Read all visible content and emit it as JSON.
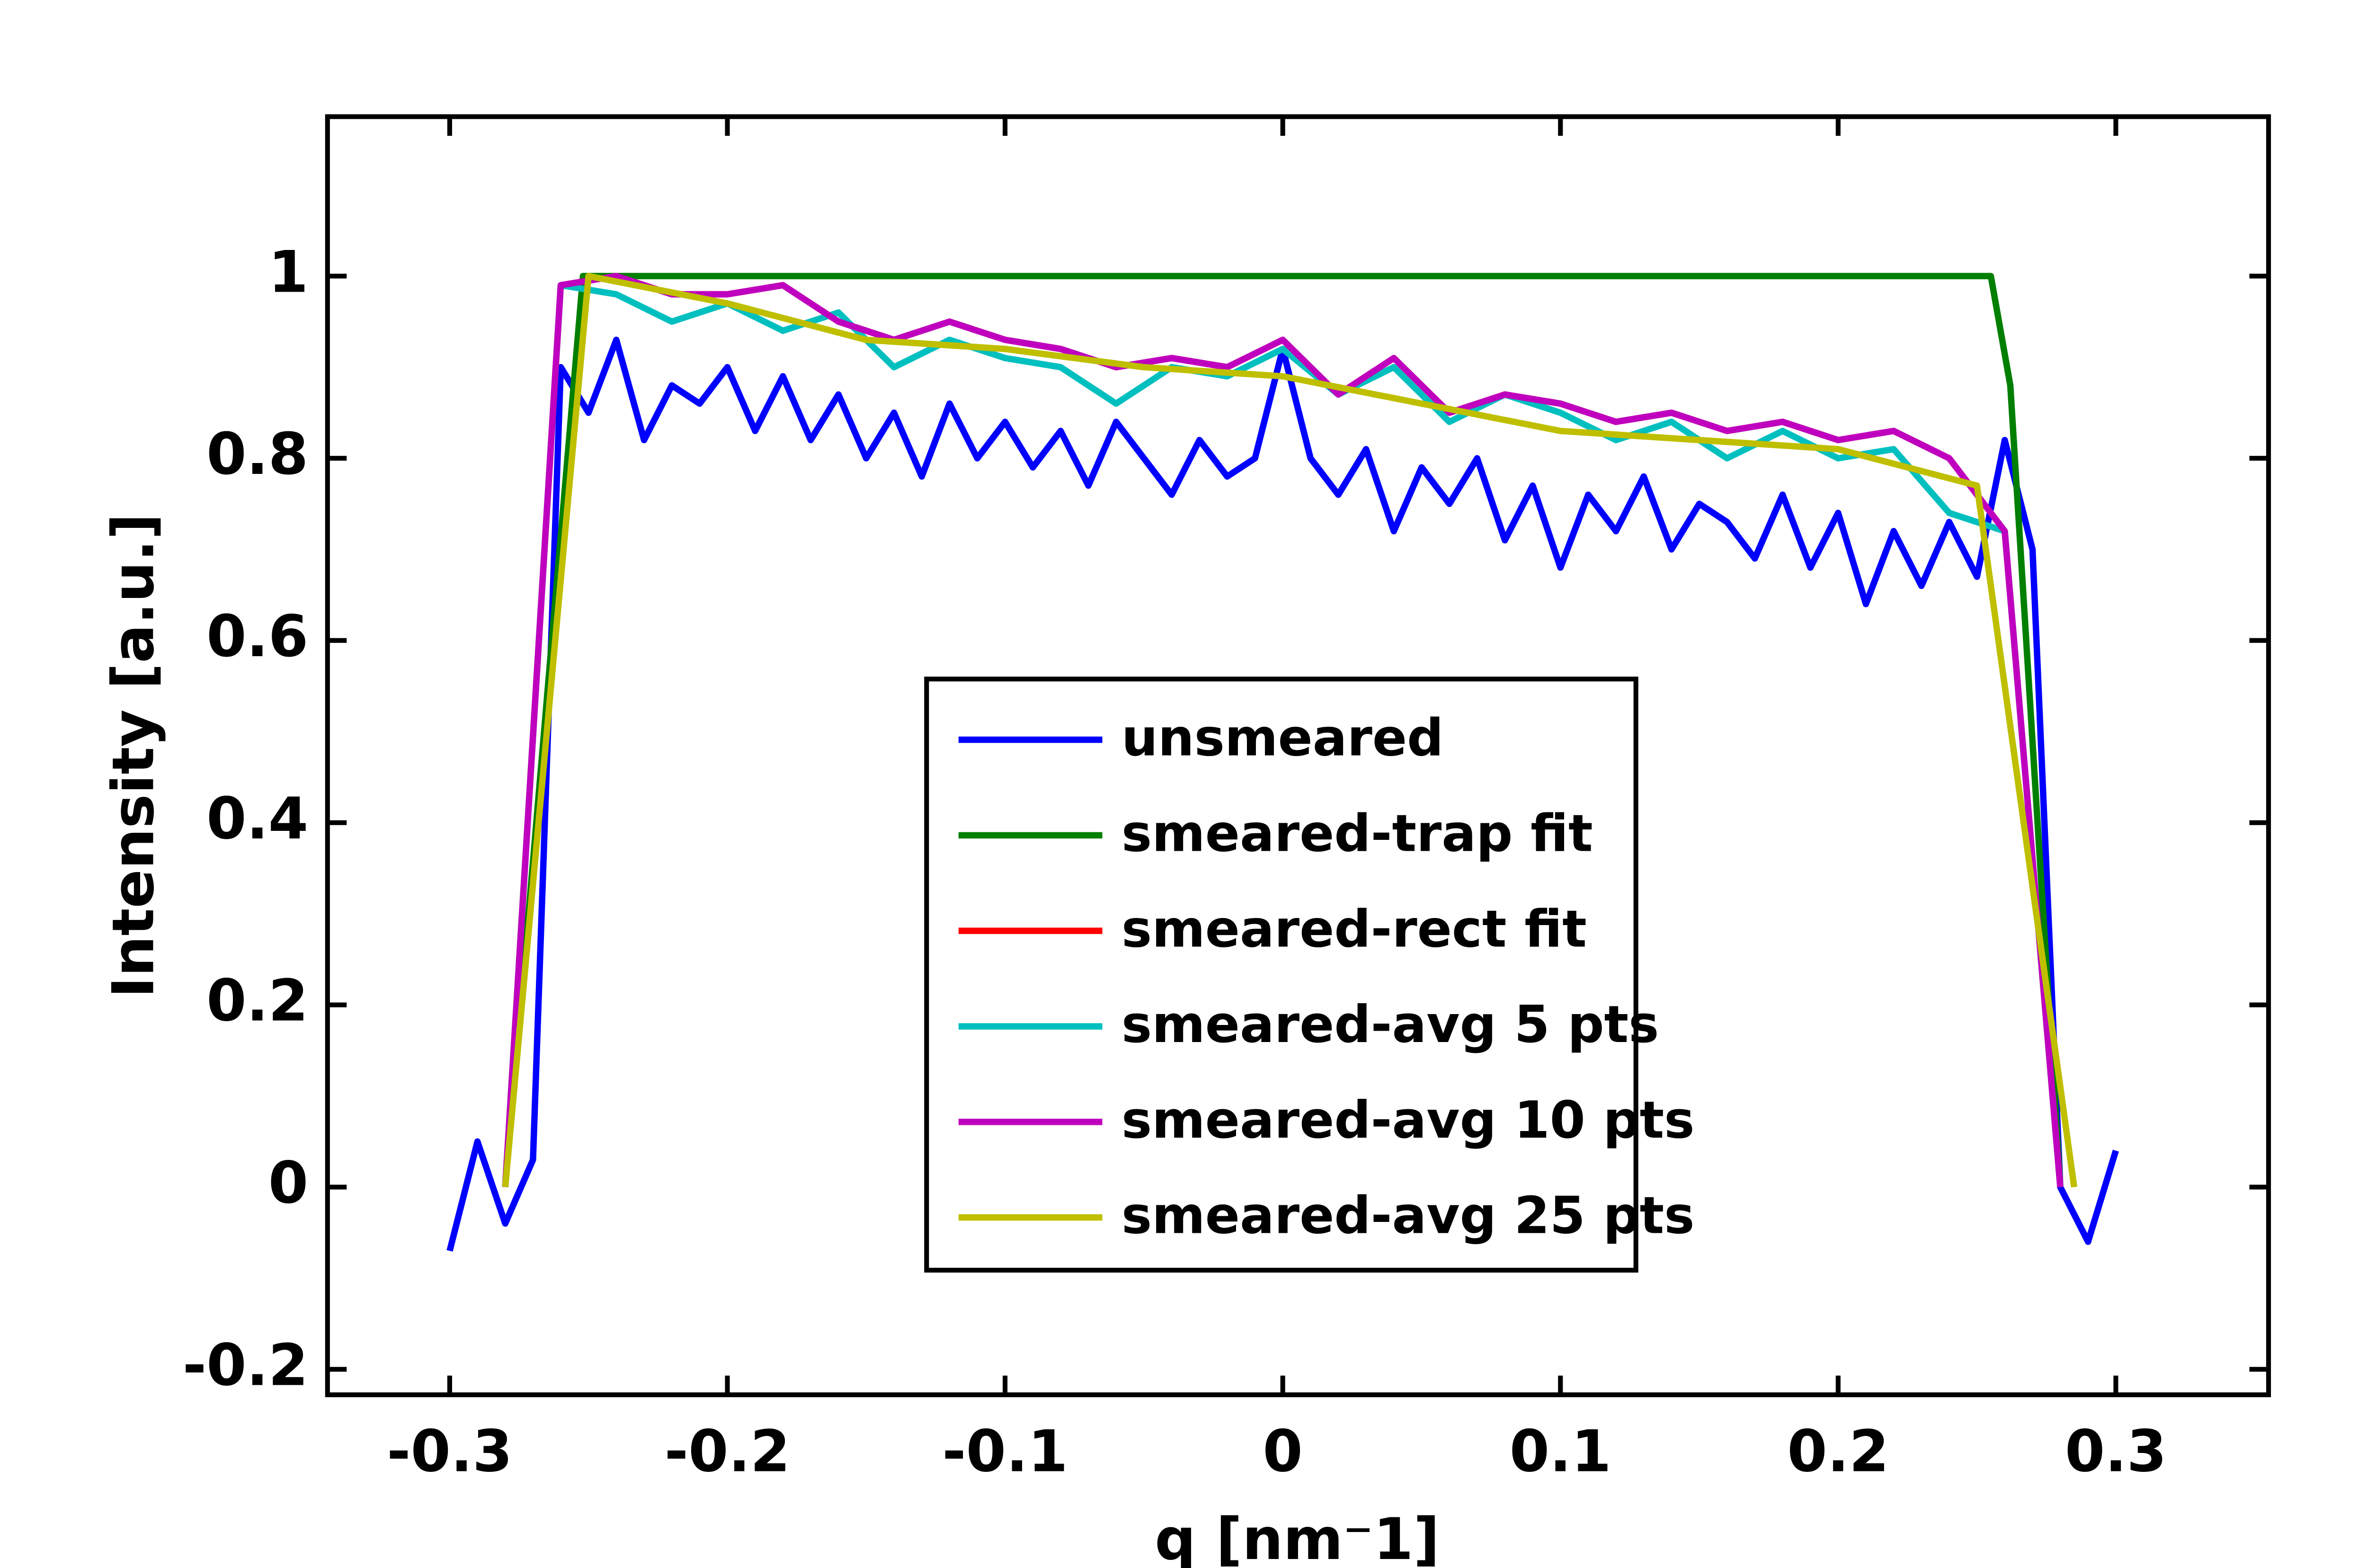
{
  "chart_data": {
    "type": "line",
    "xlabel": "q [nm⁻1]",
    "ylabel": "Intensity [a.u.]",
    "xlim": [
      -0.344,
      0.355
    ],
    "ylim": [
      -0.228,
      1.175
    ],
    "xticks": [
      -0.3,
      -0.2,
      -0.1,
      0,
      0.1,
      0.2,
      0.3
    ],
    "yticks": [
      -0.2,
      0,
      0.2,
      0.4,
      0.6,
      0.8,
      1
    ],
    "legend": "center",
    "series": [
      {
        "name": "unsmeared",
        "color": "#0000ff",
        "x": [
          -0.3,
          -0.29,
          -0.28,
          -0.27,
          -0.26,
          -0.25,
          -0.24,
          -0.23,
          -0.22,
          -0.21,
          -0.2,
          -0.19,
          -0.18,
          -0.17,
          -0.16,
          -0.15,
          -0.14,
          -0.13,
          -0.12,
          -0.11,
          -0.1,
          -0.09,
          -0.08,
          -0.07,
          -0.06,
          -0.05,
          -0.04,
          -0.03,
          -0.02,
          -0.01,
          0,
          0.01,
          0.02,
          0.03,
          0.04,
          0.05,
          0.06,
          0.07,
          0.08,
          0.09,
          0.1,
          0.11,
          0.12,
          0.13,
          0.14,
          0.15,
          0.16,
          0.17,
          0.18,
          0.19,
          0.2,
          0.21,
          0.22,
          0.23,
          0.24,
          0.25,
          0.26,
          0.27,
          0.28,
          0.29,
          0.3
        ],
        "values": [
          -0.07,
          0.05,
          -0.04,
          0.03,
          0.9,
          0.85,
          0.93,
          0.82,
          0.88,
          0.86,
          0.9,
          0.83,
          0.89,
          0.82,
          0.87,
          0.8,
          0.85,
          0.78,
          0.86,
          0.8,
          0.84,
          0.79,
          0.83,
          0.77,
          0.84,
          0.8,
          0.76,
          0.82,
          0.78,
          0.8,
          0.92,
          0.8,
          0.76,
          0.81,
          0.72,
          0.79,
          0.75,
          0.8,
          0.71,
          0.77,
          0.68,
          0.76,
          0.72,
          0.78,
          0.7,
          0.75,
          0.73,
          0.69,
          0.76,
          0.68,
          0.74,
          0.64,
          0.72,
          0.66,
          0.73,
          0.67,
          0.82,
          0.7,
          0,
          -0.06,
          0.04
        ]
      },
      {
        "name": "smeared-trap fit",
        "color": "#007f00",
        "x": [
          -0.28,
          -0.252,
          0.255,
          0.262,
          0.28
        ],
        "values": [
          0,
          1,
          1,
          0.88,
          0
        ]
      },
      {
        "name": "smeared-rect fit",
        "color": "#ff0000",
        "x": [
          -0.28,
          -0.26,
          -0.24,
          -0.22,
          -0.2,
          -0.18,
          -0.16,
          -0.14,
          -0.12,
          -0.1,
          -0.08,
          -0.06,
          -0.04,
          -0.02,
          0,
          0.02,
          0.04,
          0.06,
          0.08,
          0.1,
          0.12,
          0.14,
          0.16,
          0.18,
          0.2,
          0.22,
          0.24,
          0.26,
          0.28
        ],
        "values": [
          0,
          0.99,
          1,
          0.98,
          0.98,
          0.99,
          0.95,
          0.93,
          0.95,
          0.93,
          0.92,
          0.9,
          0.91,
          0.9,
          0.93,
          0.87,
          0.91,
          0.85,
          0.87,
          0.86,
          0.84,
          0.85,
          0.83,
          0.84,
          0.82,
          0.83,
          0.8,
          0.72,
          0
        ]
      },
      {
        "name": "smeared-avg 5 pts",
        "color": "#00bfbf",
        "x": [
          -0.28,
          -0.26,
          -0.24,
          -0.22,
          -0.2,
          -0.18,
          -0.16,
          -0.14,
          -0.12,
          -0.1,
          -0.08,
          -0.06,
          -0.04,
          -0.02,
          0,
          0.02,
          0.04,
          0.06,
          0.08,
          0.1,
          0.12,
          0.14,
          0.16,
          0.18,
          0.2,
          0.22,
          0.24,
          0.26,
          0.28
        ],
        "values": [
          0,
          0.99,
          0.98,
          0.95,
          0.97,
          0.94,
          0.96,
          0.9,
          0.93,
          0.91,
          0.9,
          0.86,
          0.9,
          0.89,
          0.92,
          0.87,
          0.9,
          0.84,
          0.87,
          0.85,
          0.82,
          0.84,
          0.8,
          0.83,
          0.8,
          0.81,
          0.74,
          0.72,
          0
        ]
      },
      {
        "name": "smeared-avg 10 pts",
        "color": "#bf00bf",
        "x": [
          -0.28,
          -0.26,
          -0.24,
          -0.22,
          -0.2,
          -0.18,
          -0.16,
          -0.14,
          -0.12,
          -0.1,
          -0.08,
          -0.06,
          -0.04,
          -0.02,
          0,
          0.02,
          0.04,
          0.06,
          0.08,
          0.1,
          0.12,
          0.14,
          0.16,
          0.18,
          0.2,
          0.22,
          0.24,
          0.26,
          0.28
        ],
        "values": [
          0,
          0.99,
          1,
          0.98,
          0.98,
          0.99,
          0.95,
          0.93,
          0.95,
          0.93,
          0.92,
          0.9,
          0.91,
          0.9,
          0.93,
          0.87,
          0.91,
          0.85,
          0.87,
          0.86,
          0.84,
          0.85,
          0.83,
          0.84,
          0.82,
          0.83,
          0.8,
          0.72,
          0
        ]
      },
      {
        "name": "smeared-avg 25 pts",
        "color": "#bfbf00",
        "x": [
          -0.28,
          -0.25,
          -0.2,
          -0.15,
          -0.1,
          -0.05,
          0,
          0.05,
          0.1,
          0.15,
          0.2,
          0.25,
          0.285
        ],
        "values": [
          0,
          1,
          0.97,
          0.93,
          0.92,
          0.9,
          0.89,
          0.86,
          0.83,
          0.82,
          0.81,
          0.77,
          0
        ]
      }
    ]
  }
}
